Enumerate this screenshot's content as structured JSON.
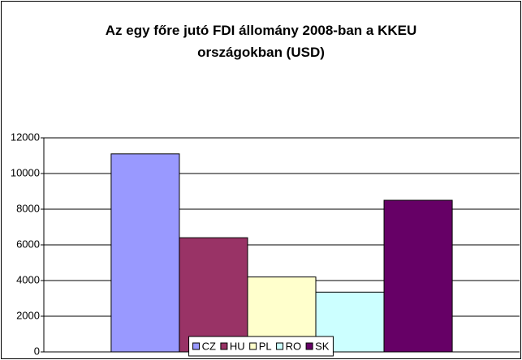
{
  "chart_data": {
    "type": "bar",
    "title": "Az egy főre jutó FDI állomány 2008-ban a KKEU országokban (USD)",
    "categories": [
      null
    ],
    "series": [
      {
        "name": "CZ",
        "color": "#9999ff",
        "values": [
          11100
        ]
      },
      {
        "name": "HU",
        "color": "#993366",
        "values": [
          6400
        ]
      },
      {
        "name": "PL",
        "color": "#ffffcc",
        "values": [
          4200
        ]
      },
      {
        "name": "RO",
        "color": "#ccffff",
        "values": [
          3350
        ]
      },
      {
        "name": "SK",
        "color": "#660066",
        "values": [
          8500
        ]
      }
    ],
    "ylim": [
      0,
      12000
    ],
    "yticks": [
      0,
      2000,
      4000,
      6000,
      8000,
      10000,
      12000
    ],
    "grid": true,
    "legend": "bottom"
  }
}
